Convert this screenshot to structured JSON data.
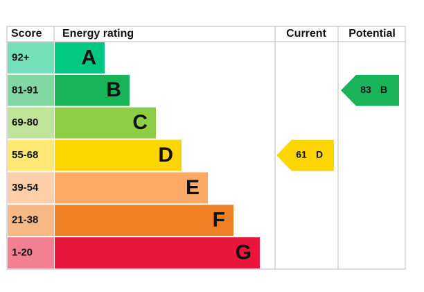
{
  "header": {
    "score": "Score",
    "rating": "Energy rating",
    "current": "Current",
    "potential": "Potential"
  },
  "rows": [
    {
      "score": "92+",
      "letter": "A",
      "color": "#00c781"
    },
    {
      "score": "81-91",
      "letter": "B",
      "color": "#19b459"
    },
    {
      "score": "69-80",
      "letter": "C",
      "color": "#8dce46"
    },
    {
      "score": "55-68",
      "letter": "D",
      "color": "#ffd500"
    },
    {
      "score": "39-54",
      "letter": "E",
      "color": "#fcaa65"
    },
    {
      "score": "21-38",
      "letter": "F",
      "color": "#ef8023"
    },
    {
      "score": "1-20",
      "letter": "G",
      "color": "#e9153b"
    }
  ],
  "current": {
    "value": 61,
    "letter": "D"
  },
  "potential": {
    "value": 83,
    "letter": "B"
  }
}
